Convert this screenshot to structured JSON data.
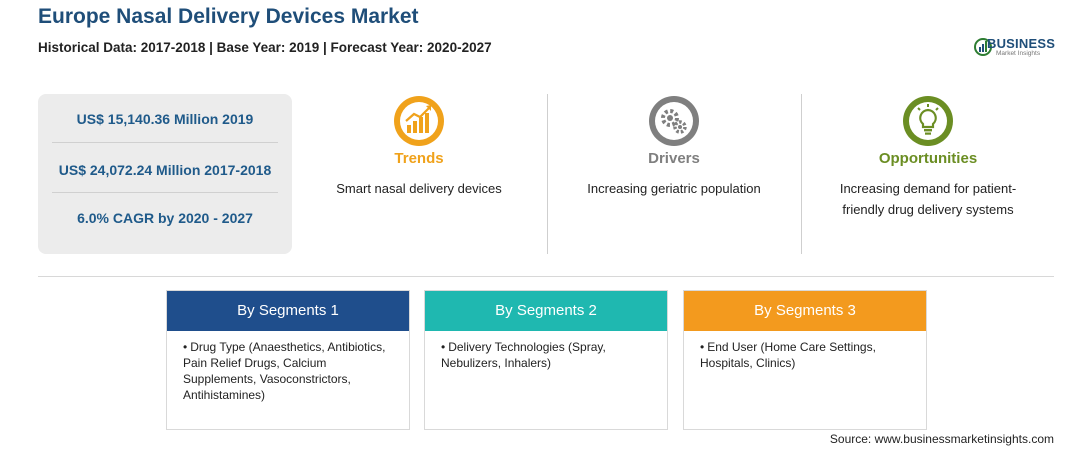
{
  "header": {
    "title": "Europe Nasal Delivery Devices Market",
    "subtitle": "Historical Data: 2017-2018 | Base Year: 2019 | Forecast Year: 2020-2027"
  },
  "logo": {
    "word": "BUSINESS",
    "sub": "Market Insights"
  },
  "stats": [
    "US$ 15,140.36 Million 2019",
    "US$ 24,072.24 Million 2017-2018",
    "6.0% CAGR by 2020 - 2027"
  ],
  "cards": [
    {
      "label": "Trends",
      "desc": "Smart nasal delivery devices",
      "color": "#f0a21b",
      "icon": "trend-chart-icon"
    },
    {
      "label": "Drivers",
      "desc": "Increasing geriatric population",
      "color": "#7f7f7f",
      "icon": "gears-icon"
    },
    {
      "label": "Opportunities",
      "desc": "Increasing demand for patient-friendly drug delivery systems",
      "color": "#6b8e23",
      "icon": "lightbulb-icon"
    }
  ],
  "segments": [
    {
      "title": "By Segments 1",
      "color": "#1f4e8c",
      "item": "Drug Type (Anaesthetics, Antibiotics, Pain Relief Drugs, Calcium Supplements, Vasoconstrictors, Antihistamines)"
    },
    {
      "title": "By Segments 2",
      "color": "#1fb8b0",
      "item": "Delivery Technologies (Spray, Nebulizers, Inhalers)"
    },
    {
      "title": "By Segments 3",
      "color": "#f39a1e",
      "item": "End User (Home Care Settings, Hospitals, Clinics)"
    }
  ],
  "source": "Source: www.businessmarketinsights.com"
}
